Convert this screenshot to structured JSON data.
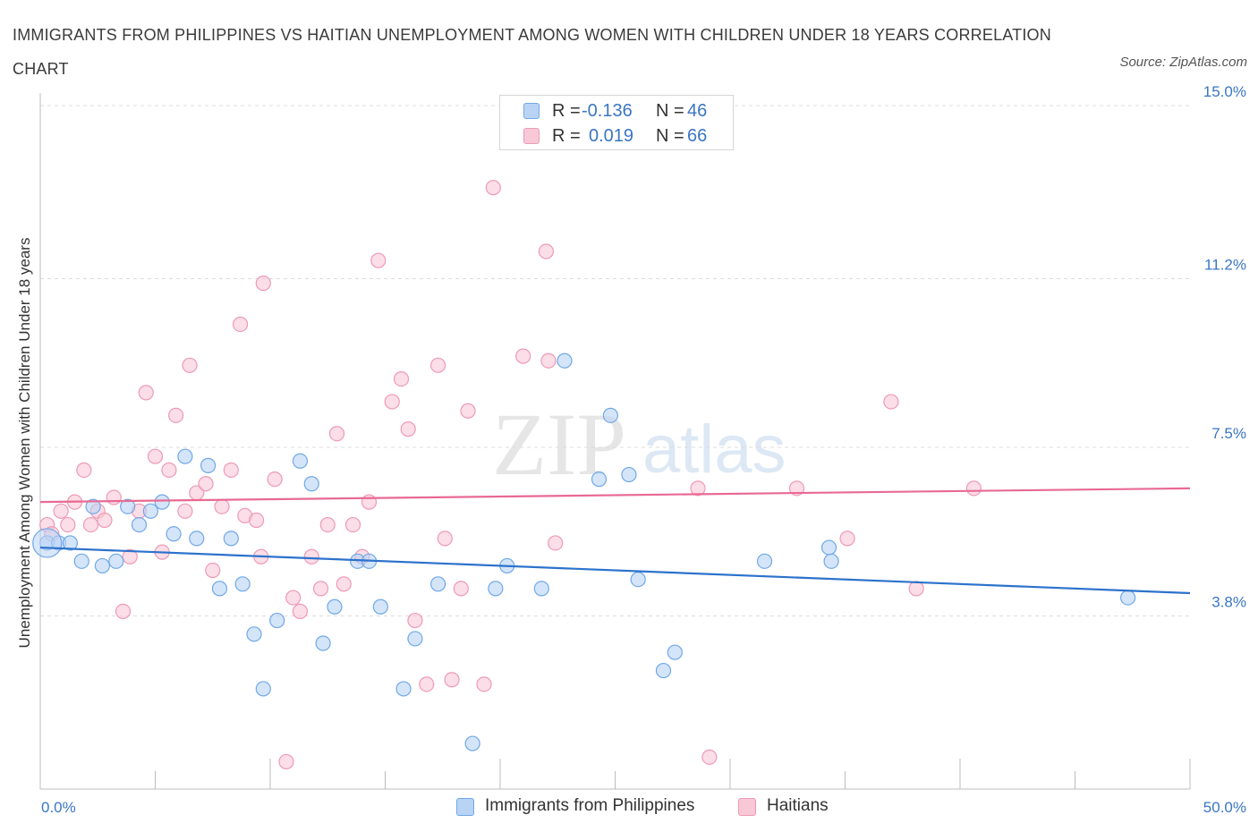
{
  "header": {
    "title": "IMMIGRANTS FROM PHILIPPINES VS HAITIAN UNEMPLOYMENT AMONG WOMEN WITH CHILDREN UNDER 18 YEARS CORRELATION CHART",
    "source": "Source: ZipAtlas.com"
  },
  "watermark": {
    "zip": "ZIP",
    "atlas": "atlas"
  },
  "legend": {
    "r_label": "R =",
    "n_label": "N =",
    "rows": [
      {
        "r": "-0.136",
        "n": "46"
      },
      {
        "r": "0.019",
        "n": "66"
      }
    ]
  },
  "chart_data": {
    "type": "scatter",
    "ylabel": "Unemployment Among Women with Children Under 18 years",
    "xlim": [
      0,
      50
    ],
    "ylim": [
      0,
      15
    ],
    "x_tick_labels": [
      {
        "value": 0,
        "label": "0.0%"
      },
      {
        "value": 50,
        "label": "50.0%"
      }
    ],
    "y_tick_labels": [
      {
        "value": 3.8,
        "label": "3.8%"
      },
      {
        "value": 7.5,
        "label": "7.5%"
      },
      {
        "value": 11.2,
        "label": "11.2%"
      },
      {
        "value": 15.0,
        "label": "15.0%"
      }
    ],
    "grid": "horizontal dashed",
    "legend_position": "top-center",
    "series": [
      {
        "name": "Immigrants from Philippines",
        "color": "#6fa8e8",
        "fill": "#b9d3f5",
        "trend": {
          "x": [
            0,
            50
          ],
          "y": [
            5.3,
            4.3
          ]
        },
        "points": [
          [
            0.3,
            5.4
          ],
          [
            0.8,
            5.4
          ],
          [
            1.3,
            5.4
          ],
          [
            1.8,
            5.0
          ],
          [
            2.3,
            6.2
          ],
          [
            2.7,
            4.9
          ],
          [
            3.3,
            5.0
          ],
          [
            3.8,
            6.2
          ],
          [
            4.3,
            5.8
          ],
          [
            4.8,
            6.1
          ],
          [
            5.3,
            6.3
          ],
          [
            5.8,
            5.6
          ],
          [
            6.3,
            7.3
          ],
          [
            6.8,
            5.5
          ],
          [
            7.3,
            7.1
          ],
          [
            7.8,
            4.4
          ],
          [
            8.3,
            5.5
          ],
          [
            8.8,
            4.5
          ],
          [
            9.3,
            3.4
          ],
          [
            9.7,
            2.2
          ],
          [
            10.3,
            3.7
          ],
          [
            11.3,
            7.2
          ],
          [
            11.8,
            6.7
          ],
          [
            12.3,
            3.2
          ],
          [
            12.8,
            4.0
          ],
          [
            13.8,
            5.0
          ],
          [
            14.3,
            5.0
          ],
          [
            14.8,
            4.0
          ],
          [
            15.8,
            2.2
          ],
          [
            16.3,
            3.3
          ],
          [
            17.3,
            4.5
          ],
          [
            18.8,
            1.0
          ],
          [
            19.8,
            4.4
          ],
          [
            20.3,
            4.9
          ],
          [
            21.8,
            4.4
          ],
          [
            22.8,
            9.4
          ],
          [
            24.3,
            6.8
          ],
          [
            24.8,
            8.2
          ],
          [
            25.6,
            6.9
          ],
          [
            26.0,
            4.6
          ],
          [
            27.6,
            3.0
          ],
          [
            27.1,
            2.6
          ],
          [
            31.5,
            5.0
          ],
          [
            34.3,
            5.3
          ],
          [
            34.4,
            5.0
          ],
          [
            47.3,
            4.2
          ]
        ]
      },
      {
        "name": "Haitians",
        "color": "#ee9ab5",
        "fill": "#f8c8d7",
        "trend": {
          "x": [
            0,
            50
          ],
          "y": [
            6.3,
            6.6
          ]
        },
        "points": [
          [
            0.3,
            5.8
          ],
          [
            0.5,
            5.6
          ],
          [
            0.9,
            6.1
          ],
          [
            1.2,
            5.8
          ],
          [
            1.5,
            6.3
          ],
          [
            1.9,
            7.0
          ],
          [
            2.2,
            5.8
          ],
          [
            2.5,
            6.1
          ],
          [
            2.8,
            5.9
          ],
          [
            3.2,
            6.4
          ],
          [
            3.6,
            3.9
          ],
          [
            3.9,
            5.1
          ],
          [
            4.3,
            6.1
          ],
          [
            4.6,
            8.7
          ],
          [
            5.0,
            7.3
          ],
          [
            5.3,
            5.2
          ],
          [
            5.6,
            7.0
          ],
          [
            5.9,
            8.2
          ],
          [
            6.3,
            6.1
          ],
          [
            6.5,
            9.3
          ],
          [
            6.8,
            6.5
          ],
          [
            7.2,
            6.7
          ],
          [
            7.5,
            4.8
          ],
          [
            7.9,
            6.2
          ],
          [
            8.3,
            7.0
          ],
          [
            8.7,
            10.2
          ],
          [
            8.9,
            6.0
          ],
          [
            9.4,
            5.9
          ],
          [
            9.6,
            5.1
          ],
          [
            9.7,
            11.1
          ],
          [
            10.2,
            6.8
          ],
          [
            10.7,
            0.6
          ],
          [
            11.0,
            4.2
          ],
          [
            11.3,
            3.9
          ],
          [
            11.8,
            5.1
          ],
          [
            12.2,
            4.4
          ],
          [
            12.5,
            5.8
          ],
          [
            12.9,
            7.8
          ],
          [
            13.2,
            4.5
          ],
          [
            13.6,
            5.8
          ],
          [
            14.0,
            5.1
          ],
          [
            14.3,
            6.3
          ],
          [
            14.7,
            11.6
          ],
          [
            15.3,
            8.5
          ],
          [
            15.7,
            9.0
          ],
          [
            16.0,
            7.9
          ],
          [
            16.3,
            3.7
          ],
          [
            16.8,
            2.3
          ],
          [
            17.3,
            9.3
          ],
          [
            17.6,
            5.5
          ],
          [
            17.9,
            2.4
          ],
          [
            18.3,
            4.4
          ],
          [
            18.6,
            8.3
          ],
          [
            19.3,
            2.3
          ],
          [
            19.7,
            13.2
          ],
          [
            21.0,
            9.5
          ],
          [
            22.0,
            11.8
          ],
          [
            22.1,
            9.4
          ],
          [
            22.4,
            5.4
          ],
          [
            28.6,
            6.6
          ],
          [
            29.1,
            0.7
          ],
          [
            32.9,
            6.6
          ],
          [
            35.1,
            5.5
          ],
          [
            37.0,
            8.5
          ],
          [
            38.1,
            4.4
          ],
          [
            40.6,
            6.6
          ]
        ]
      }
    ]
  }
}
